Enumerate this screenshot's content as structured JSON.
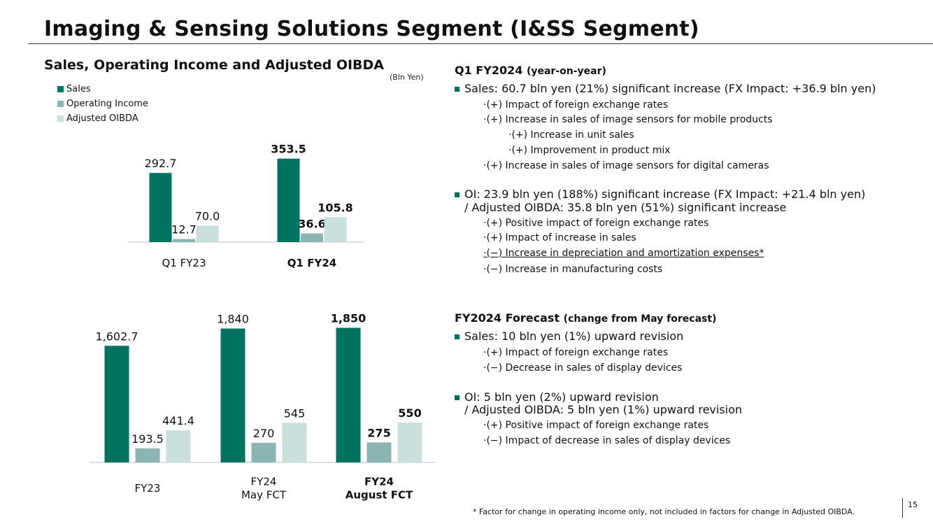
{
  "title": "Imaging & Sensing Solutions Segment (I&SS Segment)",
  "chart_heading": "Sales, Operating Income and Adjusted OIBDA",
  "unit": "(Bln Yen)",
  "colors": {
    "sales": "#007360",
    "oi": "#8ab5b0",
    "oibda": "#c8dfdc",
    "bullet": "#006b5a"
  },
  "legend": [
    {
      "label": "Sales",
      "color": "#007360"
    },
    {
      "label": "Operating Income",
      "color": "#8ab5b0"
    },
    {
      "label": "Adjusted OIBDA",
      "color": "#c8dfdc"
    }
  ],
  "chart_data": [
    {
      "type": "bar",
      "title": "Sales, Operating Income and Adjusted OIBDA (Q1)",
      "categories": [
        "Q1 FY23",
        "Q1 FY24"
      ],
      "category_bold": [
        false,
        true
      ],
      "series": [
        {
          "name": "Sales",
          "values": [
            292.7,
            353.5
          ],
          "labels": [
            "292.7",
            "353.5"
          ]
        },
        {
          "name": "Operating Income",
          "values": [
            12.7,
            36.6
          ],
          "labels": [
            "12.7",
            "36.6"
          ]
        },
        {
          "name": "Adjusted OIBDA",
          "values": [
            70.0,
            105.8
          ],
          "labels": [
            "70.0",
            "105.8"
          ]
        }
      ],
      "ylim": [
        0,
        400
      ],
      "xlabel": "",
      "ylabel": ""
    },
    {
      "type": "bar",
      "title": "Sales, Operating Income and Adjusted OIBDA (Full Year)",
      "categories": [
        "FY23",
        "FY24\nMay FCT",
        "FY24\nAugust FCT"
      ],
      "category_bold": [
        false,
        false,
        true
      ],
      "series": [
        {
          "name": "Sales",
          "values": [
            1602.7,
            1840,
            1850
          ],
          "labels": [
            "1,602.7",
            "1,840",
            "1,850"
          ]
        },
        {
          "name": "Operating Income",
          "values": [
            193.5,
            270,
            275
          ],
          "labels": [
            "193.5",
            "270",
            "275"
          ]
        },
        {
          "name": "Adjusted OIBDA",
          "values": [
            441.4,
            545,
            550
          ],
          "labels": [
            "441.4",
            "545",
            "550"
          ]
        }
      ],
      "ylim": [
        0,
        1990
      ],
      "xlabel": "",
      "ylabel": ""
    }
  ],
  "q1_section": {
    "title": "Q1 FY2024",
    "subtitle": "(year-on-year)",
    "sales_line": "Sales: 60.7 bln yen (21%) significant increase (FX Impact: +36.9 bln yen)",
    "sales_factors": [
      "·(+) Impact of foreign exchange rates",
      "·(+) Increase in sales of image sensors for mobile products",
      "·(+) Increase in unit sales",
      "·(+) Improvement in product mix",
      "·(+) Increase in sales of image sensors for digital cameras"
    ],
    "oi_line": "OI: 23.9 bln yen (188%) significant increase (FX Impact: +21.4 bln yen)",
    "oibda_line": "/ Adjusted OIBDA: 35.8 bln yen (51%) significant increase",
    "oi_factors": [
      "·(+) Positive impact of foreign exchange rates",
      "·(+) Impact of increase in sales",
      "·(−) Increase in depreciation and amortization expenses*",
      "·(−) Increase in manufacturing costs"
    ]
  },
  "forecast_section": {
    "title": "FY2024 Forecast",
    "subtitle": "(change from May forecast)",
    "sales_line": "Sales: 10 bln yen (1%) upward revision",
    "sales_factors": [
      "·(+) Impact of foreign exchange rates",
      "·(−) Decrease in sales of display devices"
    ],
    "oi_line": "OI: 5 bln yen (2%) upward revision",
    "oibda_line": "/ Adjusted OIBDA: 5 bln yen (1%) upward revision",
    "oi_factors": [
      "·(+) Positive impact of foreign exchange rates",
      "·(−) Impact of decrease in sales of display devices"
    ]
  },
  "footnote": "* Factor for change in operating income only, not included in factors for change in Adjusted OIBDA.",
  "page_number": "15"
}
